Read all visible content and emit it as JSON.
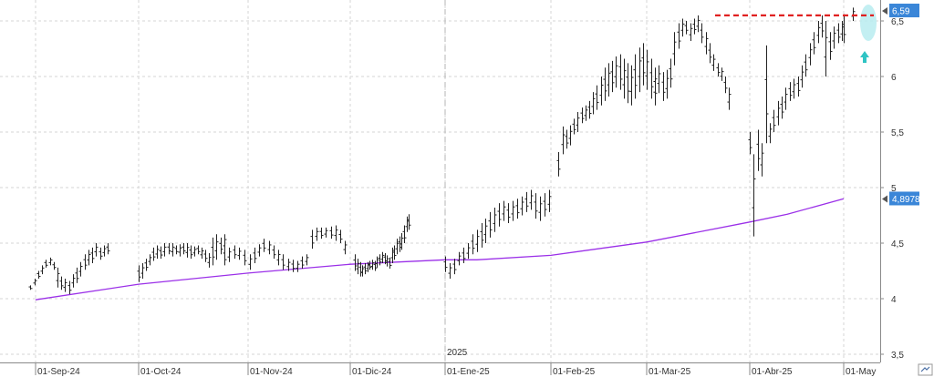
{
  "chart_data": {
    "type": "ohlc",
    "year_marker": "2025",
    "x_tick_labels": [
      "01-Sep-24",
      "01-Oct-24",
      "01-Nov-24",
      "01-Dic-24",
      "01-Ene-25",
      "01-Feb-25",
      "01-Mar-25",
      "01-Abr-25",
      "01-May"
    ],
    "y_tick_labels": [
      "6,5",
      "6",
      "5,5",
      "5",
      "4,5",
      "4",
      "3,5"
    ],
    "y_ticks": [
      6.5,
      6.0,
      5.5,
      5.0,
      4.5,
      4.0,
      3.5
    ],
    "ylim": [
      3.5,
      6.62
    ],
    "grid": true,
    "last_price_label": "6,59",
    "last_price": 6.59,
    "moving_average_label": "4,8978",
    "moving_average_last": 4.8978,
    "resistance_level": 6.55,
    "colors": {
      "bars": "#222222",
      "moving_average": "#9b30e8",
      "resistance_line": "#e02020",
      "price_badge": "#3a86d8",
      "highlight": "#b8ecf0",
      "arrow": "#2fc4c4",
      "grid": "#d6d6d6"
    },
    "moving_average_points": [
      {
        "t": 0,
        "v": 3.99
      },
      {
        "t": 1,
        "v": 4.13
      },
      {
        "t": 2,
        "v": 4.23
      },
      {
        "t": 3,
        "v": 4.31
      },
      {
        "t": 4,
        "v": 4.35
      },
      {
        "t": 4.3,
        "v": 4.35
      },
      {
        "t": 5,
        "v": 4.39
      },
      {
        "t": 6,
        "v": 4.51
      },
      {
        "t": 7,
        "v": 4.69
      },
      {
        "t": 7.4,
        "v": 4.76
      },
      {
        "t": 8,
        "v": 4.9
      }
    ],
    "segments": [
      {
        "t0": -0.05,
        "t1": 0.7,
        "d": [
          [
            4.08,
            4.12
          ],
          [
            4.12,
            4.18
          ],
          [
            4.18,
            4.25
          ],
          [
            4.22,
            4.3
          ],
          [
            4.28,
            4.35
          ],
          [
            4.3,
            4.37
          ],
          [
            4.26,
            4.33
          ],
          [
            4.1,
            4.28
          ],
          [
            4.08,
            4.2
          ],
          [
            4.06,
            4.18
          ],
          [
            4.04,
            4.16
          ],
          [
            4.1,
            4.22
          ],
          [
            4.14,
            4.28
          ],
          [
            4.2,
            4.33
          ],
          [
            4.26,
            4.4
          ],
          [
            4.3,
            4.44
          ],
          [
            4.32,
            4.46
          ],
          [
            4.38,
            4.5
          ],
          [
            4.35,
            4.46
          ],
          [
            4.38,
            4.48
          ],
          [
            4.4,
            4.5
          ]
        ]
      },
      {
        "t0": 1.0,
        "t1": 1.78,
        "d": [
          [
            4.15,
            4.3
          ],
          [
            4.18,
            4.32
          ],
          [
            4.25,
            4.36
          ],
          [
            4.3,
            4.4
          ],
          [
            4.34,
            4.46
          ],
          [
            4.36,
            4.48
          ],
          [
            4.36,
            4.47
          ],
          [
            4.38,
            4.5
          ],
          [
            4.4,
            4.5
          ],
          [
            4.38,
            4.5
          ],
          [
            4.4,
            4.48
          ],
          [
            4.38,
            4.49
          ],
          [
            4.4,
            4.5
          ],
          [
            4.37,
            4.5
          ],
          [
            4.36,
            4.48
          ],
          [
            4.38,
            4.47
          ],
          [
            4.4,
            4.48
          ],
          [
            4.36,
            4.46
          ],
          [
            4.33,
            4.44
          ],
          [
            4.28,
            4.41
          ],
          [
            4.3,
            4.55
          ],
          [
            4.35,
            4.58
          ],
          [
            4.4,
            4.55
          ],
          [
            4.42,
            4.58
          ]
        ]
      },
      {
        "t0": 1.78,
        "t1": 2.95,
        "d": [
          [
            4.3,
            4.47
          ],
          [
            4.33,
            4.46
          ],
          [
            4.36,
            4.48
          ],
          [
            4.35,
            4.46
          ],
          [
            4.3,
            4.44
          ],
          [
            4.26,
            4.4
          ],
          [
            4.32,
            4.46
          ],
          [
            4.38,
            4.49
          ],
          [
            4.42,
            4.54
          ],
          [
            4.4,
            4.52
          ],
          [
            4.36,
            4.48
          ],
          [
            4.3,
            4.44
          ],
          [
            4.26,
            4.4
          ],
          [
            4.25,
            4.36
          ],
          [
            4.24,
            4.35
          ],
          [
            4.24,
            4.34
          ],
          [
            4.27,
            4.38
          ],
          [
            4.3,
            4.4
          ],
          [
            4.45,
            4.62
          ],
          [
            4.52,
            4.64
          ],
          [
            4.54,
            4.64
          ],
          [
            4.55,
            4.64
          ],
          [
            4.54,
            4.65
          ],
          [
            4.52,
            4.66
          ],
          [
            4.5,
            4.62
          ],
          [
            4.4,
            4.52
          ]
        ]
      },
      {
        "t0": 3.05,
        "t1": 3.62,
        "d": [
          [
            4.25,
            4.4
          ],
          [
            4.22,
            4.36
          ],
          [
            4.2,
            4.33
          ],
          [
            4.2,
            4.3
          ],
          [
            4.22,
            4.32
          ],
          [
            4.24,
            4.33
          ],
          [
            4.26,
            4.34
          ],
          [
            4.26,
            4.35
          ],
          [
            4.25,
            4.34
          ],
          [
            4.28,
            4.38
          ],
          [
            4.3,
            4.4
          ],
          [
            4.32,
            4.42
          ],
          [
            4.31,
            4.41
          ],
          [
            4.29,
            4.39
          ],
          [
            4.27,
            4.37
          ],
          [
            4.32,
            4.46
          ],
          [
            4.35,
            4.48
          ],
          [
            4.4,
            4.54
          ],
          [
            4.42,
            4.56
          ],
          [
            4.44,
            4.59
          ],
          [
            4.5,
            4.66
          ],
          [
            4.6,
            4.74
          ],
          [
            4.62,
            4.76
          ]
        ]
      },
      {
        "t0": 4.0,
        "t1": 4.98,
        "d": [
          [
            4.24,
            4.38
          ],
          [
            4.18,
            4.32
          ],
          [
            4.22,
            4.36
          ],
          [
            4.3,
            4.42
          ],
          [
            4.32,
            4.46
          ],
          [
            4.36,
            4.5
          ],
          [
            4.4,
            4.58
          ],
          [
            4.42,
            4.62
          ],
          [
            4.46,
            4.68
          ],
          [
            4.5,
            4.72
          ],
          [
            4.55,
            4.78
          ],
          [
            4.6,
            4.82
          ],
          [
            4.65,
            4.86
          ],
          [
            4.7,
            4.88
          ],
          [
            4.68,
            4.86
          ],
          [
            4.7,
            4.88
          ],
          [
            4.72,
            4.9
          ],
          [
            4.75,
            4.92
          ],
          [
            4.78,
            4.96
          ],
          [
            4.8,
            4.98
          ],
          [
            4.72,
            4.95
          ],
          [
            4.7,
            4.92
          ],
          [
            4.74,
            4.95
          ],
          [
            4.78,
            4.98
          ]
        ]
      },
      {
        "t0": 5.08,
        "t1": 6.08,
        "d": [
          [
            5.1,
            5.32
          ],
          [
            5.3,
            5.55
          ],
          [
            5.35,
            5.52
          ],
          [
            5.38,
            5.56
          ],
          [
            5.48,
            5.62
          ],
          [
            5.5,
            5.68
          ],
          [
            5.58,
            5.72
          ],
          [
            5.6,
            5.74
          ],
          [
            5.62,
            5.78
          ],
          [
            5.66,
            5.86
          ],
          [
            5.7,
            5.92
          ],
          [
            5.74,
            6.0
          ],
          [
            5.78,
            6.08
          ],
          [
            5.82,
            6.12
          ],
          [
            5.86,
            6.14
          ],
          [
            5.9,
            6.18
          ],
          [
            5.88,
            6.2
          ],
          [
            5.8,
            6.16
          ],
          [
            5.76,
            6.12
          ],
          [
            5.74,
            6.1
          ],
          [
            5.8,
            6.2
          ],
          [
            5.86,
            6.26
          ],
          [
            5.92,
            6.3
          ],
          [
            5.88,
            6.24
          ],
          [
            5.8,
            6.16
          ],
          [
            5.74,
            6.08
          ]
        ]
      },
      {
        "t0": 6.08,
        "t1": 6.8,
        "d": [
          [
            5.76,
            6.06
          ],
          [
            5.85,
            6.1
          ],
          [
            5.78,
            6.04
          ],
          [
            5.8,
            6.06
          ],
          [
            5.9,
            6.16
          ],
          [
            6.1,
            6.4
          ],
          [
            6.25,
            6.48
          ],
          [
            6.36,
            6.52
          ],
          [
            6.38,
            6.5
          ],
          [
            6.32,
            6.48
          ],
          [
            6.38,
            6.52
          ],
          [
            6.4,
            6.55
          ],
          [
            6.3,
            6.48
          ],
          [
            6.2,
            6.4
          ],
          [
            6.12,
            6.3
          ],
          [
            6.05,
            6.2
          ],
          [
            6.0,
            6.12
          ],
          [
            5.96,
            6.08
          ],
          [
            5.85,
            6.0
          ],
          [
            5.7,
            5.9
          ]
        ]
      },
      {
        "t0": 7.0,
        "t1": 7.98,
        "d": [
          [
            5.3,
            5.5
          ],
          [
            4.56,
            5.3
          ],
          [
            5.15,
            5.52
          ],
          [
            5.1,
            5.4
          ],
          [
            5.4,
            6.28
          ],
          [
            5.4,
            5.58
          ],
          [
            5.5,
            5.7
          ],
          [
            5.56,
            5.78
          ],
          [
            5.62,
            5.82
          ],
          [
            5.7,
            5.9
          ],
          [
            5.78,
            5.95
          ],
          [
            5.8,
            5.98
          ],
          [
            5.82,
            6.0
          ],
          [
            5.9,
            6.1
          ],
          [
            6.0,
            6.2
          ],
          [
            6.1,
            6.3
          ],
          [
            6.2,
            6.4
          ],
          [
            6.3,
            6.5
          ],
          [
            6.35,
            6.55
          ],
          [
            6.0,
            6.5
          ],
          [
            6.15,
            6.4
          ],
          [
            6.25,
            6.45
          ],
          [
            6.3,
            6.48
          ],
          [
            6.32,
            6.5
          ]
        ]
      },
      {
        "t0": 8.0,
        "t1": 8.1,
        "d": [
          [
            6.3,
            6.56
          ],
          [
            6.5,
            6.62
          ]
        ]
      }
    ]
  }
}
